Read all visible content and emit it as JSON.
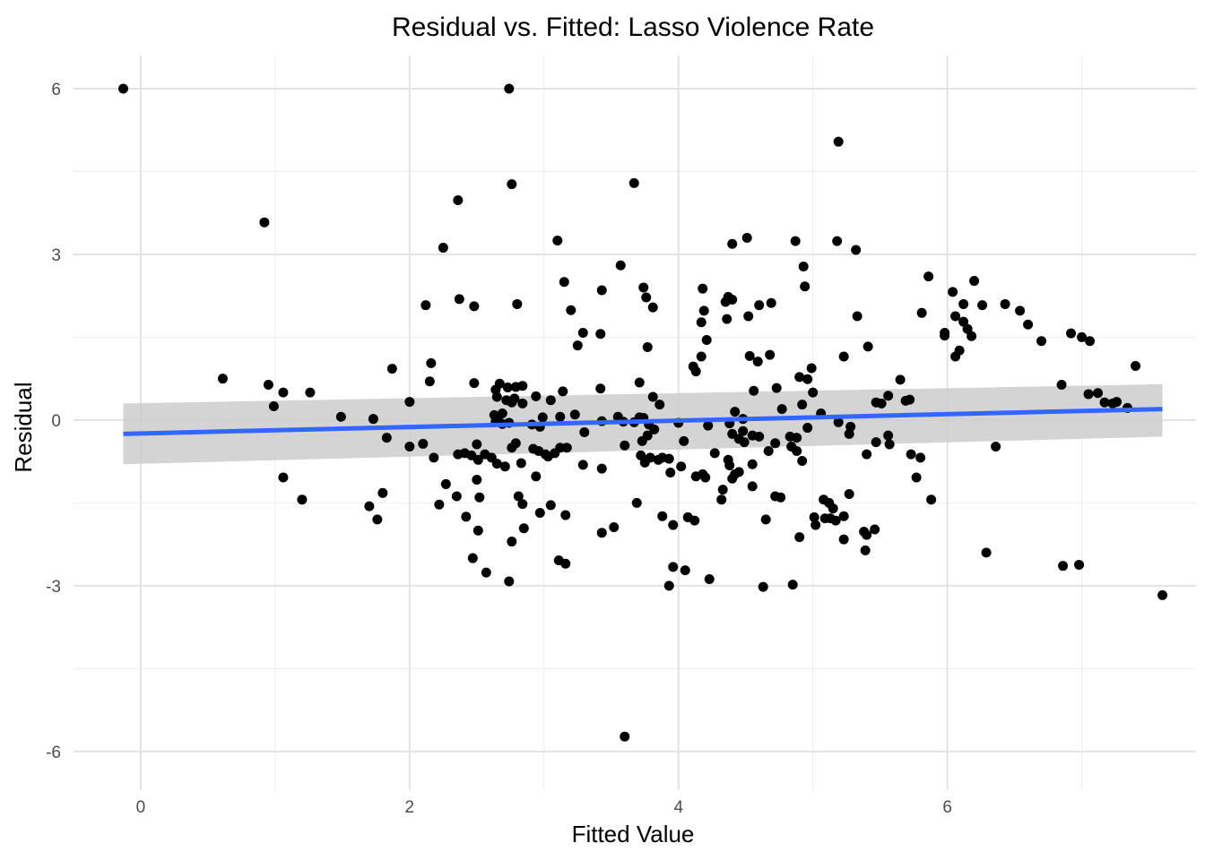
{
  "chart_data": {
    "type": "scatter",
    "title": "Residual vs. Fitted: Lasso Violence Rate",
    "xlabel": "Fitted Value",
    "ylabel": "Residual",
    "xlim": [
      -0.5,
      7.85
    ],
    "ylim": [
      -6.7,
      6.6
    ],
    "x_ticks": [
      0,
      2,
      4,
      6
    ],
    "x_tick_labels": [
      "0",
      "2",
      "4",
      "6"
    ],
    "y_ticks": [
      -6,
      -3,
      0,
      3,
      6
    ],
    "y_tick_labels": [
      "-6",
      "-3",
      "0",
      "3",
      "6"
    ],
    "grid": true,
    "point_color": "#000000",
    "fit_line": {
      "x": [
        -0.13,
        7.6
      ],
      "y": [
        -0.25,
        0.2
      ],
      "color": "#3366FF"
    },
    "confidence_band": {
      "x": [
        -0.13,
        7.6
      ],
      "upper": [
        0.3,
        0.65
      ],
      "lower": [
        -0.8,
        -0.3
      ],
      "color": "#CCCCCC"
    },
    "points": [
      [
        -0.13,
        6.0
      ],
      [
        2.74,
        6.0
      ],
      [
        5.19,
        5.04
      ],
      [
        2.76,
        4.27
      ],
      [
        3.67,
        4.29
      ],
      [
        2.36,
        3.98
      ],
      [
        0.92,
        3.58
      ],
      [
        2.25,
        3.12
      ],
      [
        3.1,
        3.25
      ],
      [
        4.51,
        3.3
      ],
      [
        4.87,
        3.24
      ],
      [
        5.18,
        3.24
      ],
      [
        5.32,
        3.08
      ],
      [
        4.4,
        3.19
      ],
      [
        3.57,
        2.8
      ],
      [
        4.93,
        2.78
      ],
      [
        5.86,
        2.6
      ],
      [
        6.2,
        2.52
      ],
      [
        3.15,
        2.5
      ],
      [
        3.74,
        2.4
      ],
      [
        4.18,
        2.38
      ],
      [
        4.94,
        2.42
      ],
      [
        3.43,
        2.35
      ],
      [
        6.04,
        2.32
      ],
      [
        2.37,
        2.19
      ],
      [
        4.37,
        2.23
      ],
      [
        4.4,
        2.18
      ],
      [
        6.12,
        2.1
      ],
      [
        6.26,
        2.08
      ],
      [
        6.43,
        2.1
      ],
      [
        2.12,
        2.08
      ],
      [
        2.48,
        2.06
      ],
      [
        2.8,
        2.1
      ],
      [
        3.76,
        2.22
      ],
      [
        3.81,
        2.04
      ],
      [
        4.35,
        2.14
      ],
      [
        4.6,
        2.08
      ],
      [
        4.69,
        2.12
      ],
      [
        4.19,
        1.98
      ],
      [
        6.54,
        1.98
      ],
      [
        3.2,
        1.99
      ],
      [
        5.33,
        1.88
      ],
      [
        5.81,
        1.94
      ],
      [
        6.06,
        1.88
      ],
      [
        4.52,
        1.88
      ],
      [
        4.36,
        1.83
      ],
      [
        4.17,
        1.77
      ],
      [
        6.12,
        1.78
      ],
      [
        6.15,
        1.65
      ],
      [
        6.6,
        1.73
      ],
      [
        6.92,
        1.57
      ],
      [
        6.18,
        1.52
      ],
      [
        7.0,
        1.5
      ],
      [
        5.98,
        1.53
      ],
      [
        3.29,
        1.58
      ],
      [
        3.42,
        1.56
      ],
      [
        3.25,
        1.35
      ],
      [
        5.98,
        1.58
      ],
      [
        5.41,
        1.33
      ],
      [
        6.7,
        1.43
      ],
      [
        7.06,
        1.43
      ],
      [
        6.09,
        1.26
      ],
      [
        6.06,
        1.15
      ],
      [
        3.77,
        1.32
      ],
      [
        4.21,
        1.45
      ],
      [
        4.17,
        1.15
      ],
      [
        4.53,
        1.16
      ],
      [
        4.68,
        1.18
      ],
      [
        4.59,
        1.06
      ],
      [
        4.11,
        0.97
      ],
      [
        4.13,
        0.88
      ],
      [
        5.23,
        1.15
      ],
      [
        4.99,
        0.94
      ],
      [
        4.9,
        0.78
      ],
      [
        4.96,
        0.74
      ],
      [
        7.4,
        0.98
      ],
      [
        1.87,
        0.93
      ],
      [
        2.16,
        1.03
      ],
      [
        0.61,
        0.75
      ],
      [
        0.95,
        0.64
      ],
      [
        1.06,
        0.5
      ],
      [
        1.26,
        0.5
      ],
      [
        0.99,
        0.25
      ],
      [
        2.15,
        0.7
      ],
      [
        2.48,
        0.67
      ],
      [
        2.67,
        0.66
      ],
      [
        2.73,
        0.59
      ],
      [
        2.79,
        0.6
      ],
      [
        2.84,
        0.62
      ],
      [
        2.64,
        0.55
      ],
      [
        2.78,
        0.39
      ],
      [
        2.76,
        0.32
      ],
      [
        2.84,
        0.3
      ],
      [
        2.94,
        0.43
      ],
      [
        3.05,
        0.36
      ],
      [
        2.72,
        0.36
      ],
      [
        2.65,
        0.42
      ],
      [
        3.14,
        0.52
      ],
      [
        3.42,
        0.57
      ],
      [
        3.71,
        0.68
      ],
      [
        3.81,
        0.42
      ],
      [
        3.86,
        0.28
      ],
      [
        4.56,
        0.53
      ],
      [
        4.73,
        0.58
      ],
      [
        5.0,
        0.5
      ],
      [
        5.56,
        0.44
      ],
      [
        5.47,
        0.32
      ],
      [
        5.51,
        0.3
      ],
      [
        5.65,
        0.73
      ],
      [
        5.69,
        0.35
      ],
      [
        5.72,
        0.37
      ],
      [
        6.85,
        0.64
      ],
      [
        7.05,
        0.47
      ],
      [
        7.12,
        0.49
      ],
      [
        7.17,
        0.32
      ],
      [
        7.23,
        0.3
      ],
      [
        7.26,
        0.33
      ],
      [
        7.34,
        0.22
      ],
      [
        4.92,
        0.28
      ],
      [
        4.77,
        0.2
      ],
      [
        5.06,
        0.12
      ],
      [
        2.0,
        0.33
      ],
      [
        1.49,
        0.06
      ],
      [
        1.73,
        0.02
      ],
      [
        2.63,
        0.09
      ],
      [
        2.66,
        0.06
      ],
      [
        2.69,
        0.12
      ],
      [
        2.99,
        0.05
      ],
      [
        3.12,
        0.06
      ],
      [
        3.23,
        0.1
      ],
      [
        3.55,
        0.06
      ],
      [
        3.71,
        0.05
      ],
      [
        3.74,
        0.04
      ],
      [
        4.48,
        0.02
      ],
      [
        4.42,
        0.15
      ],
      [
        2.64,
        -0.03
      ],
      [
        2.69,
        -0.07
      ],
      [
        2.74,
        -0.05
      ],
      [
        2.91,
        -0.08
      ],
      [
        2.97,
        -0.12
      ],
      [
        3.43,
        -0.02
      ],
      [
        3.59,
        -0.03
      ],
      [
        3.67,
        -0.04
      ],
      [
        3.78,
        -0.08
      ],
      [
        4.0,
        -0.05
      ],
      [
        4.22,
        -0.1
      ],
      [
        4.38,
        -0.06
      ],
      [
        5.19,
        -0.04
      ],
      [
        5.28,
        -0.12
      ],
      [
        5.27,
        -0.25
      ],
      [
        5.56,
        -0.28
      ],
      [
        4.96,
        -0.14
      ],
      [
        4.4,
        -0.25
      ],
      [
        4.45,
        -0.34
      ],
      [
        4.55,
        -0.28
      ],
      [
        4.49,
        -0.4
      ],
      [
        4.72,
        -0.42
      ],
      [
        4.83,
        -0.3
      ],
      [
        4.88,
        -0.32
      ],
      [
        3.3,
        -0.22
      ],
      [
        3.82,
        -0.17
      ],
      [
        3.77,
        -0.28
      ],
      [
        1.83,
        -0.32
      ],
      [
        2.0,
        -0.48
      ],
      [
        2.1,
        -0.43
      ],
      [
        2.18,
        -0.68
      ],
      [
        2.36,
        -0.62
      ],
      [
        2.41,
        -0.6
      ],
      [
        2.46,
        -0.64
      ],
      [
        2.5,
        -0.44
      ],
      [
        2.51,
        -0.72
      ],
      [
        2.56,
        -0.62
      ],
      [
        2.61,
        -0.68
      ],
      [
        2.65,
        -0.79
      ],
      [
        2.71,
        -0.84
      ],
      [
        2.76,
        -0.5
      ],
      [
        2.79,
        -0.42
      ],
      [
        2.83,
        -0.78
      ],
      [
        2.92,
        -0.52
      ],
      [
        2.96,
        -0.56
      ],
      [
        3.01,
        -0.62
      ],
      [
        3.03,
        -0.66
      ],
      [
        3.08,
        -0.6
      ],
      [
        3.17,
        -0.5
      ],
      [
        3.29,
        -0.81
      ],
      [
        3.43,
        -0.88
      ],
      [
        3.6,
        -0.46
      ],
      [
        3.73,
        -0.38
      ],
      [
        3.75,
        -0.77
      ],
      [
        3.79,
        -0.68
      ],
      [
        3.85,
        -0.72
      ],
      [
        3.88,
        -0.68
      ],
      [
        3.93,
        -0.7
      ],
      [
        3.94,
        -0.95
      ],
      [
        4.02,
        -0.84
      ],
      [
        4.04,
        -0.38
      ],
      [
        4.13,
        -1.02
      ],
      [
        4.18,
        -0.98
      ],
      [
        4.2,
        -1.04
      ],
      [
        4.27,
        -0.6
      ],
      [
        4.37,
        -0.72
      ],
      [
        4.38,
        -0.82
      ],
      [
        4.42,
        -0.98
      ],
      [
        4.45,
        -0.94
      ],
      [
        4.55,
        -0.8
      ],
      [
        4.67,
        -0.56
      ],
      [
        4.84,
        -0.48
      ],
      [
        4.88,
        -0.56
      ],
      [
        4.92,
        -0.74
      ],
      [
        5.47,
        -0.4
      ],
      [
        5.4,
        -0.62
      ],
      [
        5.57,
        -0.44
      ],
      [
        5.73,
        -0.62
      ],
      [
        5.8,
        -0.68
      ],
      [
        5.77,
        -1.04
      ],
      [
        6.36,
        -0.48
      ],
      [
        3.72,
        -0.64
      ],
      [
        1.06,
        -1.04
      ],
      [
        1.2,
        -1.44
      ],
      [
        1.7,
        -1.56
      ],
      [
        1.76,
        -1.8
      ],
      [
        1.8,
        -1.32
      ],
      [
        2.22,
        -1.53
      ],
      [
        2.27,
        -1.16
      ],
      [
        2.35,
        -1.38
      ],
      [
        2.42,
        -1.75
      ],
      [
        2.47,
        -2.5
      ],
      [
        2.51,
        -2.0
      ],
      [
        2.5,
        -1.08
      ],
      [
        2.52,
        -1.4
      ],
      [
        2.57,
        -2.76
      ],
      [
        2.74,
        -2.92
      ],
      [
        2.76,
        -2.2
      ],
      [
        2.81,
        -1.38
      ],
      [
        2.84,
        -1.52
      ],
      [
        2.85,
        -1.96
      ],
      [
        2.94,
        -1.02
      ],
      [
        2.97,
        -1.68
      ],
      [
        3.05,
        -1.54
      ],
      [
        3.11,
        -2.54
      ],
      [
        3.16,
        -2.6
      ],
      [
        3.16,
        -1.72
      ],
      [
        3.43,
        -2.04
      ],
      [
        3.52,
        -1.94
      ],
      [
        3.69,
        -1.5
      ],
      [
        3.88,
        -1.74
      ],
      [
        3.93,
        -3.0
      ],
      [
        3.96,
        -1.9
      ],
      [
        3.96,
        -2.66
      ],
      [
        4.05,
        -2.72
      ],
      [
        4.07,
        -1.76
      ],
      [
        4.12,
        -1.82
      ],
      [
        4.23,
        -2.88
      ],
      [
        4.32,
        -1.44
      ],
      [
        4.33,
        -1.26
      ],
      [
        4.4,
        -1.06
      ],
      [
        4.55,
        -1.2
      ],
      [
        4.63,
        -3.02
      ],
      [
        4.72,
        -1.38
      ],
      [
        4.85,
        -2.98
      ],
      [
        4.9,
        -2.12
      ],
      [
        5.01,
        -1.76
      ],
      [
        5.08,
        -1.44
      ],
      [
        5.09,
        -1.78
      ],
      [
        5.12,
        -1.5
      ],
      [
        5.17,
        -1.82
      ],
      [
        5.23,
        -2.16
      ],
      [
        5.27,
        -1.34
      ],
      [
        5.38,
        -2.02
      ],
      [
        5.39,
        -2.36
      ],
      [
        5.4,
        -2.08
      ],
      [
        5.46,
        -1.98
      ],
      [
        5.88,
        -1.44
      ],
      [
        6.29,
        -2.4
      ],
      [
        6.86,
        -2.64
      ],
      [
        6.98,
        -2.62
      ],
      [
        7.6,
        -3.17
      ],
      [
        3.6,
        -5.73
      ],
      [
        5.15,
        -1.6
      ],
      [
        5.02,
        -1.9
      ],
      [
        5.13,
        -1.78
      ],
      [
        4.65,
        -1.8
      ],
      [
        4.76,
        -1.4
      ],
      [
        4.6,
        -0.3
      ],
      [
        4.48,
        -0.2
      ],
      [
        5.23,
        -1.74
      ],
      [
        3.12,
        -0.5
      ]
    ]
  }
}
